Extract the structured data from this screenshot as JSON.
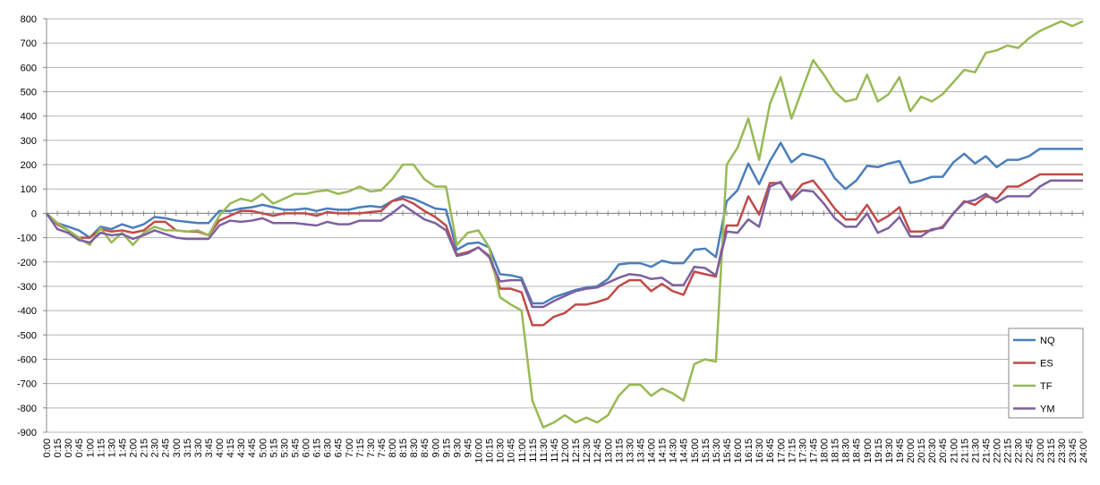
{
  "chart_data": {
    "type": "line",
    "categories": [
      "0:00",
      "0:15",
      "0:30",
      "0:45",
      "1:00",
      "1:15",
      "1:30",
      "1:45",
      "2:00",
      "2:15",
      "2:30",
      "2:45",
      "3:00",
      "3:15",
      "3:30",
      "3:45",
      "4:00",
      "4:15",
      "4:30",
      "4:45",
      "5:00",
      "5:15",
      "5:30",
      "5:45",
      "6:00",
      "6:15",
      "6:30",
      "6:45",
      "7:00",
      "7:15",
      "7:30",
      "7:45",
      "8:00",
      "8:15",
      "8:30",
      "8:45",
      "9:00",
      "9:15",
      "9:30",
      "9:45",
      "10:00",
      "10:15",
      "10:30",
      "10:45",
      "11:00",
      "11:15",
      "11:30",
      "11:45",
      "12:00",
      "12:15",
      "12:30",
      "12:45",
      "13:00",
      "13:15",
      "13:30",
      "13:45",
      "14:00",
      "14:15",
      "14:30",
      "14:45",
      "15:00",
      "15:15",
      "15:30",
      "15:45",
      "16:00",
      "16:15",
      "16:30",
      "16:45",
      "17:00",
      "17:15",
      "17:30",
      "17:45",
      "18:00",
      "18:15",
      "18:30",
      "18:45",
      "19:00",
      "19:15",
      "19:30",
      "19:45",
      "20:00",
      "20:15",
      "20:30",
      "20:45",
      "21:00",
      "21:15",
      "21:30",
      "21:45",
      "22:00",
      "22:15",
      "22:30",
      "22:45",
      "23:00",
      "23:15",
      "23:30",
      "23:45",
      "24:00"
    ],
    "series": [
      {
        "name": "NQ",
        "color": "#4a7ebb",
        "values": [
          0,
          -40,
          -55,
          -70,
          -100,
          -55,
          -65,
          -45,
          -60,
          -45,
          -15,
          -20,
          -30,
          -35,
          -40,
          -40,
          10,
          10,
          20,
          25,
          35,
          25,
          15,
          15,
          20,
          10,
          20,
          15,
          15,
          25,
          30,
          25,
          50,
          70,
          60,
          40,
          20,
          15,
          -150,
          -125,
          -120,
          -140,
          -250,
          -255,
          -265,
          -370,
          -370,
          -345,
          -330,
          -315,
          -305,
          -300,
          -270,
          -210,
          -205,
          -205,
          -220,
          -195,
          -205,
          -205,
          -150,
          -145,
          -180,
          50,
          95,
          205,
          120,
          215,
          290,
          210,
          245,
          235,
          220,
          145,
          100,
          135,
          195,
          190,
          205,
          215,
          125,
          135,
          150,
          150,
          210,
          245,
          205,
          235,
          190,
          220,
          220,
          235,
          265,
          265,
          265,
          265,
          265
        ]
      },
      {
        "name": "ES",
        "color": "#be4b48",
        "values": [
          0,
          -45,
          -70,
          -100,
          -100,
          -65,
          -75,
          -70,
          -80,
          -70,
          -35,
          -35,
          -70,
          -75,
          -75,
          -90,
          -30,
          -10,
          10,
          10,
          0,
          -10,
          0,
          0,
          0,
          -10,
          5,
          0,
          0,
          0,
          5,
          10,
          50,
          60,
          40,
          10,
          -15,
          -50,
          -170,
          -160,
          -140,
          -175,
          -310,
          -310,
          -325,
          -460,
          -460,
          -425,
          -410,
          -375,
          -375,
          -365,
          -350,
          -300,
          -275,
          -275,
          -320,
          -290,
          -320,
          -335,
          -240,
          -250,
          -260,
          -50,
          -50,
          70,
          -5,
          125,
          125,
          65,
          120,
          135,
          80,
          20,
          -25,
          -25,
          35,
          -35,
          -10,
          25,
          -75,
          -75,
          -70,
          -55,
          0,
          50,
          35,
          70,
          60,
          110,
          110,
          135,
          160,
          160,
          160,
          160,
          160
        ]
      },
      {
        "name": "TF",
        "color": "#98b954",
        "values": [
          0,
          -40,
          -70,
          -100,
          -130,
          -60,
          -120,
          -80,
          -130,
          -80,
          -55,
          -70,
          -70,
          -75,
          -70,
          -90,
          -10,
          40,
          60,
          50,
          80,
          40,
          60,
          80,
          80,
          90,
          95,
          80,
          90,
          110,
          90,
          95,
          140,
          200,
          200,
          140,
          110,
          110,
          -130,
          -80,
          -70,
          -140,
          -345,
          -375,
          -400,
          -770,
          -880,
          -860,
          -830,
          -860,
          -840,
          -860,
          -830,
          -750,
          -705,
          -705,
          -750,
          -720,
          -740,
          -770,
          -620,
          -600,
          -610,
          200,
          270,
          390,
          220,
          450,
          560,
          390,
          510,
          630,
          570,
          500,
          460,
          470,
          570,
          460,
          490,
          560,
          420,
          480,
          460,
          490,
          540,
          590,
          580,
          660,
          670,
          690,
          680,
          720,
          750,
          770,
          790,
          770,
          790
        ]
      },
      {
        "name": "YM",
        "color": "#7d60a0",
        "values": [
          0,
          -65,
          -80,
          -110,
          -120,
          -80,
          -90,
          -85,
          -105,
          -90,
          -70,
          -85,
          -100,
          -105,
          -105,
          -105,
          -50,
          -30,
          -35,
          -30,
          -20,
          -40,
          -40,
          -40,
          -45,
          -50,
          -35,
          -45,
          -45,
          -30,
          -30,
          -30,
          0,
          35,
          5,
          -25,
          -40,
          -70,
          -175,
          -165,
          -140,
          -180,
          -280,
          -275,
          -275,
          -385,
          -385,
          -360,
          -340,
          -320,
          -310,
          -305,
          -285,
          -265,
          -250,
          -255,
          -270,
          -265,
          -295,
          -295,
          -220,
          -225,
          -255,
          -75,
          -80,
          -25,
          -55,
          110,
          130,
          55,
          95,
          90,
          40,
          -20,
          -55,
          -55,
          0,
          -80,
          -60,
          -15,
          -95,
          -95,
          -65,
          -60,
          0,
          45,
          55,
          80,
          45,
          70,
          70,
          70,
          110,
          135,
          135,
          135,
          135
        ]
      }
    ],
    "ylim": [
      -900,
      800
    ],
    "yticks": [
      -900,
      -800,
      -700,
      -600,
      -500,
      -400,
      -300,
      -200,
      -100,
      0,
      100,
      200,
      300,
      400,
      500,
      600,
      700,
      800
    ],
    "grid": true,
    "legend": "lower right"
  }
}
